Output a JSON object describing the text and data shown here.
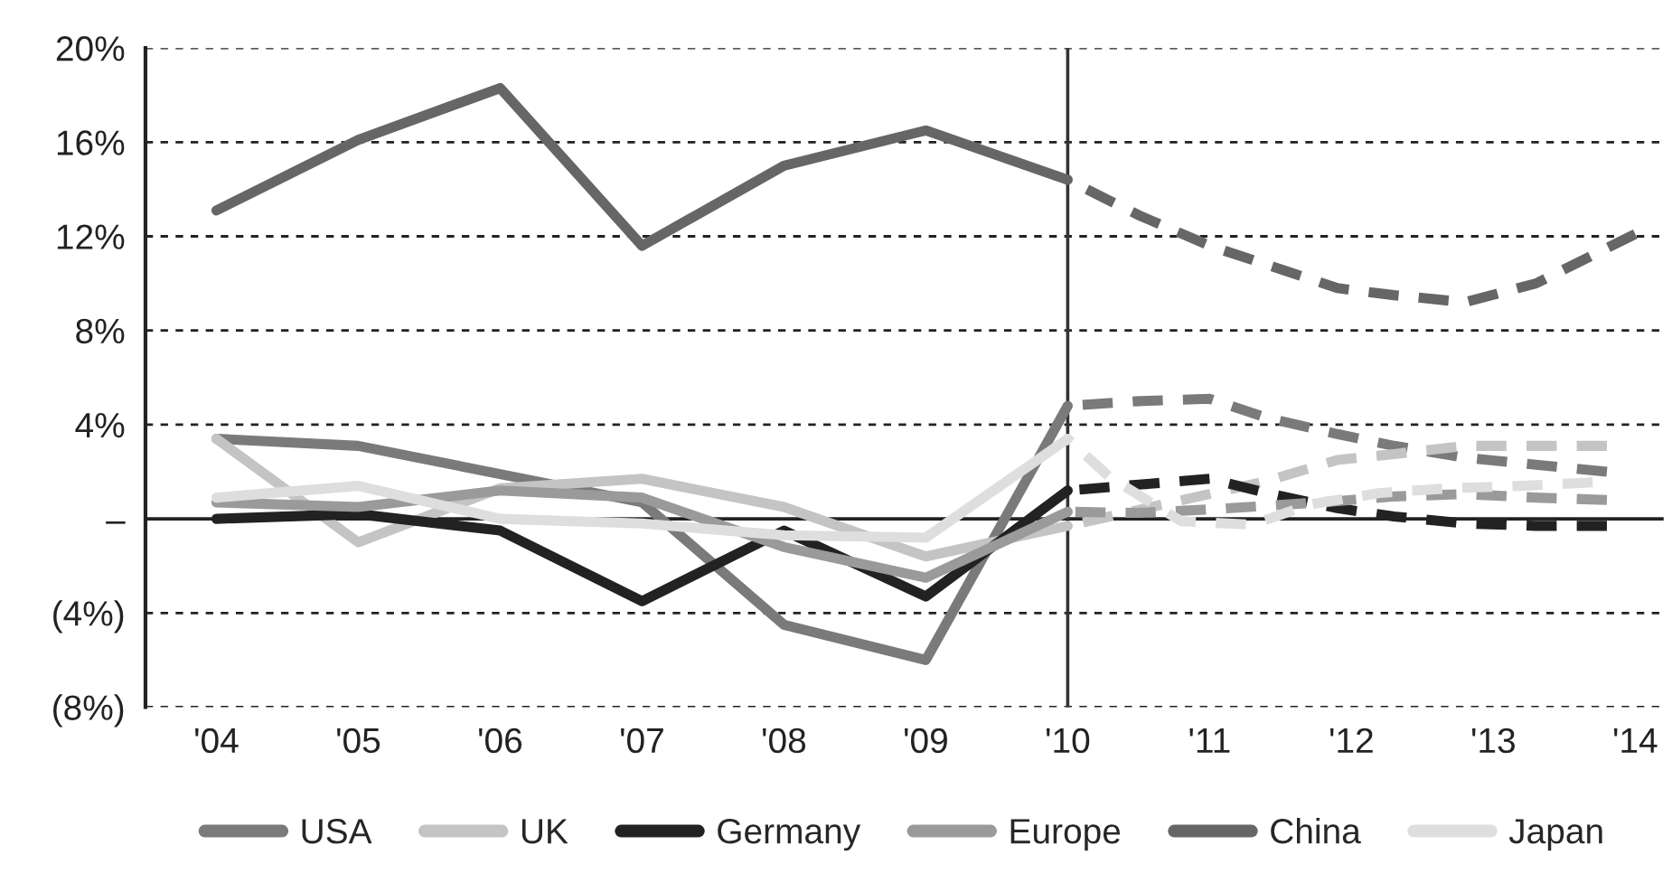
{
  "chart_data": {
    "type": "line",
    "ylim": [
      -8,
      20
    ],
    "xlim": [
      2003.5,
      2014.2
    ],
    "yticks": [
      {
        "value": 20,
        "label": "20%"
      },
      {
        "value": 16,
        "label": "16%"
      },
      {
        "value": 12,
        "label": "12%"
      },
      {
        "value": 8,
        "label": "8%"
      },
      {
        "value": 4,
        "label": "4%"
      },
      {
        "value": 0,
        "label": "–"
      },
      {
        "value": -4,
        "label": "(4%)"
      },
      {
        "value": -8,
        "label": "(8%)"
      }
    ],
    "xticks": [
      {
        "value": 2004,
        "label": "'04"
      },
      {
        "value": 2005,
        "label": "'05"
      },
      {
        "value": 2006,
        "label": "'06"
      },
      {
        "value": 2007,
        "label": "'07"
      },
      {
        "value": 2008,
        "label": "'08"
      },
      {
        "value": 2009,
        "label": "'09"
      },
      {
        "value": 2010,
        "label": "'10"
      },
      {
        "value": 2011,
        "label": "'11"
      },
      {
        "value": 2012,
        "label": "'12"
      },
      {
        "value": 2013,
        "label": "'13"
      },
      {
        "value": 2014,
        "label": "'14"
      }
    ],
    "grid": "y",
    "legend": "bottom",
    "marker": "none",
    "ref_lines": [
      {
        "axis": "x",
        "value": 2010,
        "color": "#333333",
        "line_style": "solid"
      }
    ],
    "series": [
      {
        "name": "USA",
        "color": "#7a7a7a",
        "line_style": "solid",
        "x": [
          2004,
          2005,
          2006,
          2007,
          2008,
          2009,
          2010
        ],
        "values": [
          3.4,
          3.1,
          1.9,
          0.7,
          -4.5,
          -6.0,
          4.8
        ]
      },
      {
        "name": "UK",
        "color": "#c4c4c4",
        "line_style": "solid",
        "x": [
          2004,
          2005,
          2006,
          2007,
          2008,
          2009,
          2010
        ],
        "values": [
          3.4,
          -1.0,
          1.3,
          1.7,
          0.5,
          -1.6,
          -0.3
        ]
      },
      {
        "name": "Germany",
        "color": "#222222",
        "line_style": "solid",
        "x": [
          2004,
          2005,
          2006,
          2007,
          2008,
          2009,
          2010
        ],
        "values": [
          0,
          0.2,
          -0.5,
          -3.5,
          -0.5,
          -3.3,
          1.2
        ]
      },
      {
        "name": "Europe",
        "color": "#9a9a9a",
        "line_style": "solid",
        "x": [
          2004,
          2005,
          2006,
          2007,
          2008,
          2009,
          2010
        ],
        "values": [
          0.7,
          0.5,
          1.2,
          0.9,
          -1.2,
          -2.5,
          0.3
        ]
      },
      {
        "name": "China",
        "color": "#666666",
        "line_style": "solid",
        "x": [
          2004,
          2005,
          2006,
          2007,
          2008,
          2009,
          2010
        ],
        "values": [
          13.1,
          16.1,
          18.3,
          11.6,
          15.0,
          16.5,
          14.4
        ]
      },
      {
        "name": "Japan",
        "color": "#dedede",
        "line_style": "solid",
        "x": [
          2004,
          2005,
          2006,
          2007,
          2008,
          2009,
          2010
        ],
        "values": [
          0.9,
          1.4,
          0,
          -0.2,
          -0.7,
          -0.8,
          3.4
        ]
      },
      {
        "color": "#7a7a7a",
        "line_style": "dashed",
        "x": [
          2010,
          2010.5,
          2011,
          2011.4,
          2011.9,
          2012.3,
          2012.8,
          2013.3,
          2013.8
        ],
        "values": [
          4.8,
          5.0,
          5.1,
          4.3,
          3.6,
          3.1,
          2.6,
          2.3,
          2.0
        ]
      },
      {
        "color": "#c4c4c4",
        "line_style": "dashed",
        "x": [
          2010,
          2011.4,
          2011.9,
          2012.3,
          2012.8,
          2013.3,
          2013.8
        ],
        "values": [
          -0.3,
          1.6,
          2.5,
          2.75,
          3.1,
          3.1,
          3.1
        ]
      },
      {
        "color": "#222222",
        "line_style": "dashed",
        "x": [
          2010,
          2010.5,
          2011,
          2011.4,
          2011.9,
          2012.3,
          2012.8,
          2013.3,
          2013.8
        ],
        "values": [
          1.2,
          1.45,
          1.7,
          1.1,
          0.45,
          0.1,
          -0.2,
          -0.3,
          -0.3
        ]
      },
      {
        "color": "#9a9a9a",
        "line_style": "dashed",
        "x": [
          2010,
          2010.5,
          2011,
          2011.4,
          2011.9,
          2012.3,
          2012.8,
          2013.3,
          2013.8
        ],
        "values": [
          0.3,
          0.25,
          0.4,
          0.55,
          0.75,
          0.95,
          1.05,
          0.9,
          0.8
        ]
      },
      {
        "color": "#666666",
        "line_style": "dashed",
        "x": [
          2010,
          2010.5,
          2011,
          2011.4,
          2011.9,
          2012.3,
          2012.8,
          2013.3,
          2013.8,
          2014
        ],
        "values": [
          14.4,
          12.9,
          11.6,
          10.8,
          9.8,
          9.5,
          9.2,
          10.0,
          11.5,
          12.1
        ]
      },
      {
        "color": "#dedede",
        "line_style": "dashed",
        "x": [
          2010,
          2010.3,
          2010.8,
          2011.3,
          2011.7,
          2012.2,
          2012.7,
          2013.2,
          2013.7
        ],
        "values": [
          3.4,
          1.75,
          -0.1,
          -0.25,
          0.6,
          1.1,
          1.3,
          1.4,
          1.55
        ]
      }
    ]
  }
}
